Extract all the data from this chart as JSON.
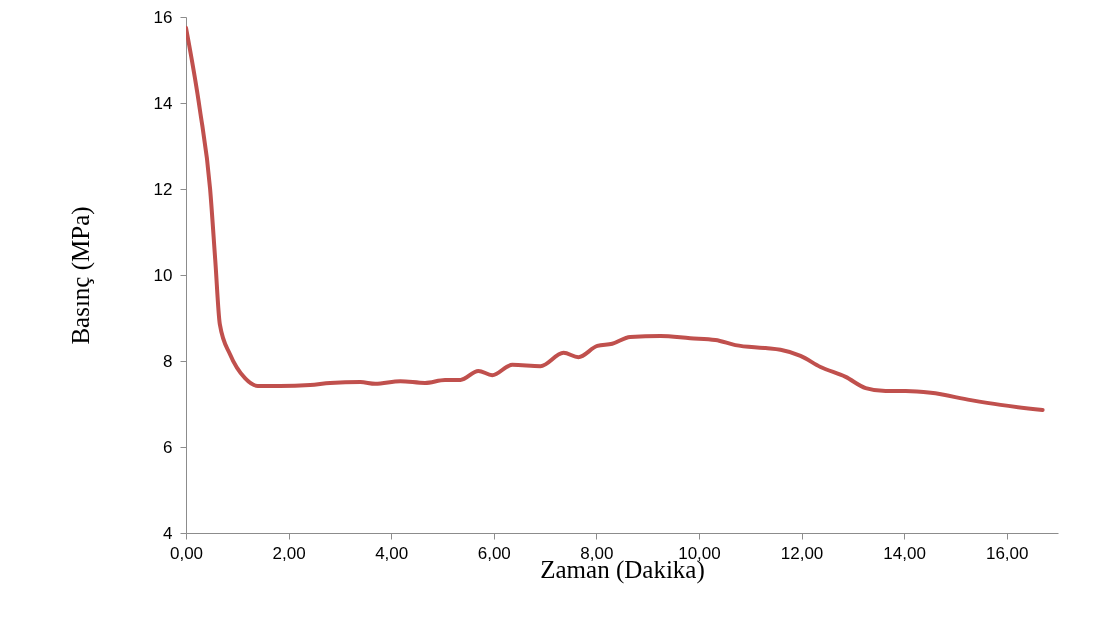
{
  "chart_data": {
    "type": "line",
    "xlabel": "Zaman (Dakika)",
    "ylabel": "Basınç   (MPa)",
    "x": [
      0,
      0.27,
      0.47,
      0.57,
      0.66,
      0.86,
      1.15,
      1.4,
      1.83,
      2.42,
      2.81,
      3.4,
      3.69,
      4.18,
      4.66,
      5.05,
      5.35,
      5.7,
      5.97,
      6.36,
      6.91,
      7.36,
      7.65,
      8.02,
      8.31,
      8.66,
      9.25,
      9.83,
      10.32,
      10.71,
      11.3,
      11.59,
      11.98,
      12.37,
      12.86,
      13.25,
      13.64,
      14.03,
      14.52,
      15.3,
      15.88,
      16.7
    ],
    "series": [
      {
        "color": "#c0504d",
        "values": [
          15.75,
          13.85,
          12.0,
          10.35,
          8.85,
          8.15,
          7.6,
          7.42,
          7.42,
          7.44,
          7.49,
          7.51,
          7.47,
          7.53,
          7.49,
          7.56,
          7.56,
          7.77,
          7.67,
          7.91,
          7.88,
          8.19,
          8.09,
          8.35,
          8.4,
          8.56,
          8.58,
          8.53,
          8.49,
          8.37,
          8.3,
          8.26,
          8.12,
          7.86,
          7.63,
          7.37,
          7.3,
          7.3,
          7.26,
          7.09,
          6.98,
          6.86
        ]
      }
    ],
    "xlim": [
      0,
      17
    ],
    "xticks": [
      {
        "value": 0,
        "label": "0,00"
      },
      {
        "value": 2,
        "label": "2,00"
      },
      {
        "value": 4,
        "label": "4,00"
      },
      {
        "value": 6,
        "label": "6,00"
      },
      {
        "value": 8,
        "label": "8,00"
      },
      {
        "value": 10,
        "label": "10,00"
      },
      {
        "value": 12,
        "label": "12,00"
      },
      {
        "value": 14,
        "label": "14,00"
      },
      {
        "value": 16,
        "label": "16,00"
      }
    ],
    "ylim": [
      4,
      16
    ],
    "yticks": [
      4,
      6,
      8,
      10,
      12,
      14,
      16
    ],
    "grid": false,
    "marker": "none",
    "line_style": "solid"
  }
}
